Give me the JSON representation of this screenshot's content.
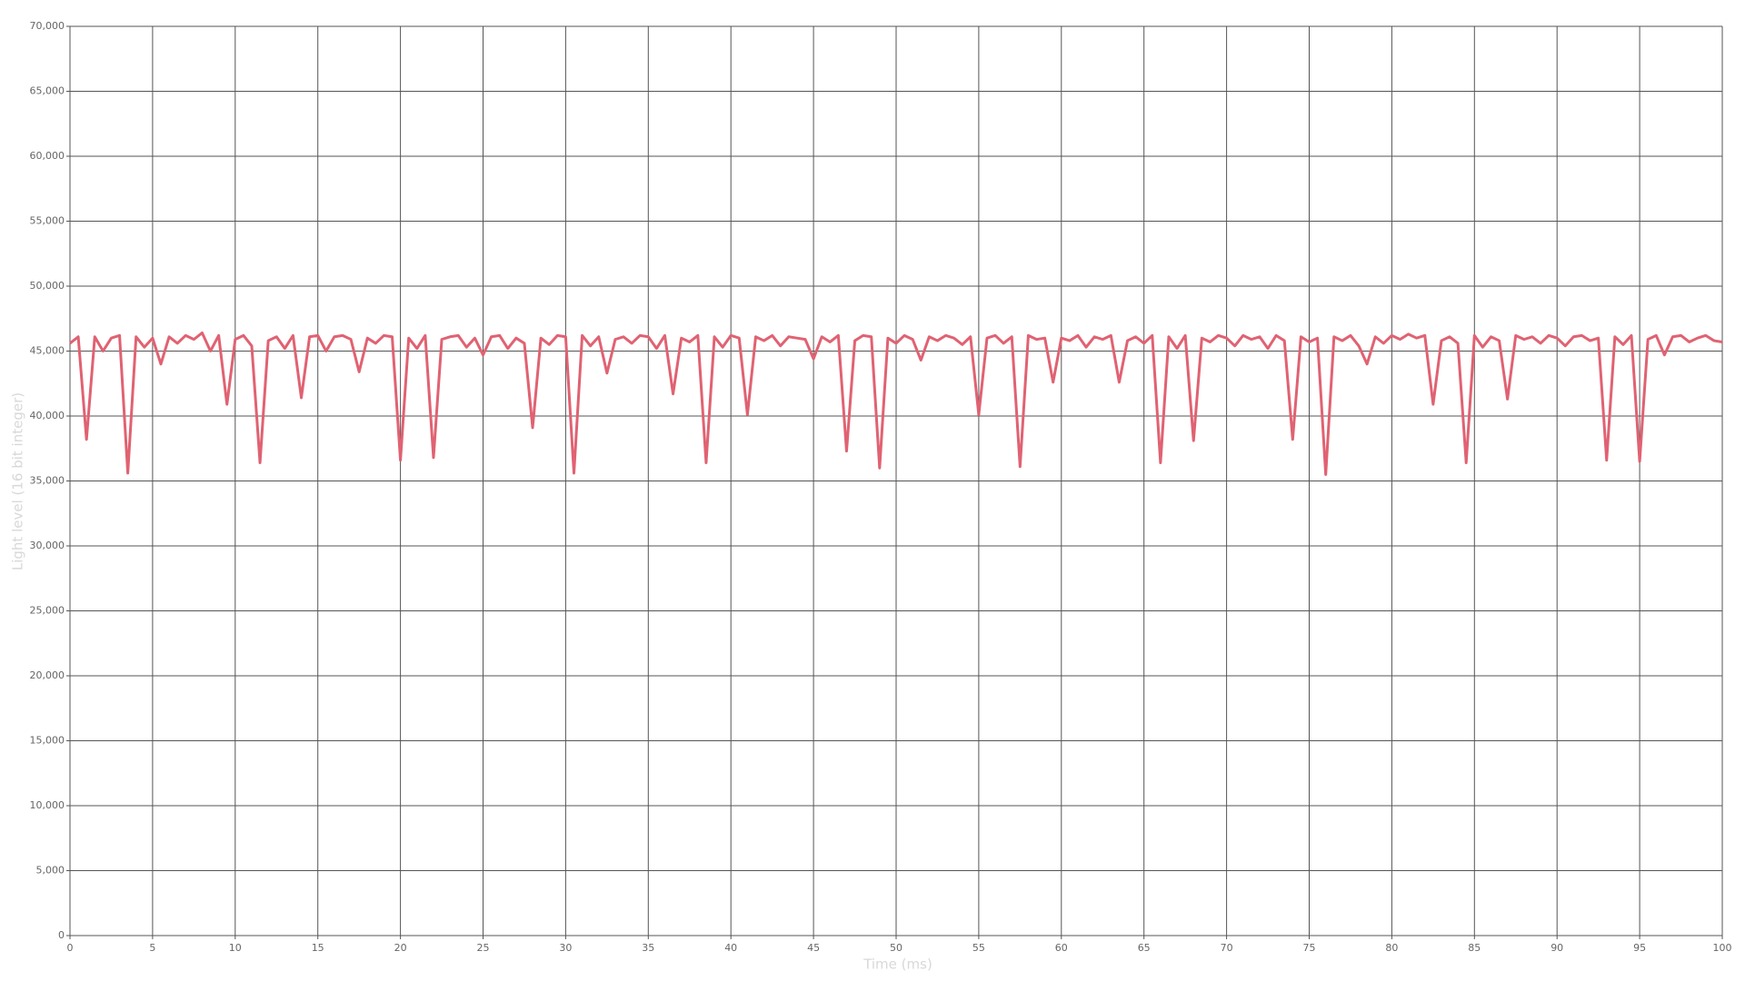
{
  "chart_data": {
    "type": "line",
    "x_label": "Time (ms)",
    "y_label": "Light level (16 bit integer)",
    "color": "#e06272",
    "grid": true,
    "xlim": [
      0,
      100
    ],
    "xticks": [
      0,
      5,
      10,
      15,
      20,
      25,
      30,
      35,
      40,
      45,
      50,
      55,
      60,
      65,
      70,
      75,
      80,
      85,
      90,
      95,
      100
    ],
    "ylim": [
      0,
      70000
    ],
    "yticks": [
      0,
      {
        "value": 5000,
        "label": "5,000"
      },
      {
        "value": 10000,
        "label": "10,000"
      },
      {
        "value": 15000,
        "label": "15,000"
      },
      {
        "value": 20000,
        "label": "20,000"
      },
      {
        "value": 25000,
        "label": "25,000"
      },
      {
        "value": 30000,
        "label": "30,000"
      },
      {
        "value": 35000,
        "label": "35,000"
      },
      {
        "value": 40000,
        "label": "40,000"
      },
      {
        "value": 45000,
        "label": "45,000"
      },
      {
        "value": 50000,
        "label": "50,000"
      },
      {
        "value": 55000,
        "label": "55,000"
      },
      {
        "value": 60000,
        "label": "60,000"
      },
      {
        "value": 65000,
        "label": "65,000"
      },
      {
        "value": 70000,
        "label": "70,000"
      }
    ],
    "x": [
      0,
      0.5,
      1,
      1.5,
      2,
      2.5,
      3,
      3.5,
      4,
      4.5,
      5,
      5.5,
      6,
      6.5,
      7,
      7.5,
      8,
      8.5,
      9,
      9.5,
      10,
      10.5,
      11,
      11.5,
      12,
      12.5,
      13,
      13.5,
      14,
      14.5,
      15,
      15.5,
      16,
      16.5,
      17,
      17.5,
      18,
      18.5,
      19,
      19.5,
      20,
      20.5,
      21,
      21.5,
      22,
      22.5,
      23,
      23.5,
      24,
      24.5,
      25,
      25.5,
      26,
      26.5,
      27,
      27.5,
      28,
      28.5,
      29,
      29.5,
      30,
      30.5,
      31,
      31.5,
      32,
      32.5,
      33,
      33.5,
      34,
      34.5,
      35,
      35.5,
      36,
      36.5,
      37,
      37.5,
      38,
      38.5,
      39,
      39.5,
      40,
      40.5,
      41,
      41.5,
      42,
      42.5,
      43,
      43.5,
      44,
      44.5,
      45,
      45.5,
      46,
      46.5,
      47,
      47.5,
      48,
      48.5,
      49,
      49.5,
      50,
      50.5,
      51,
      51.5,
      52,
      52.5,
      53,
      53.5,
      54,
      54.5,
      55,
      55.5,
      56,
      56.5,
      57,
      57.5,
      58,
      58.5,
      59,
      59.5,
      60,
      60.5,
      61,
      61.5,
      62,
      62.5,
      63,
      63.5,
      64,
      64.5,
      65,
      65.5,
      66,
      66.5,
      67,
      67.5,
      68,
      68.5,
      69,
      69.5,
      70,
      70.5,
      71,
      71.5,
      72,
      72.5,
      73,
      73.5,
      74,
      74.5,
      75,
      75.5,
      76,
      76.5,
      77,
      77.5,
      78,
      78.5,
      79,
      79.5,
      80,
      80.5,
      81,
      81.5,
      82,
      82.5,
      83,
      83.5,
      84,
      84.5,
      85,
      85.5,
      86,
      86.5,
      87,
      87.5,
      88,
      88.5,
      89,
      89.5,
      90,
      90.5,
      91,
      91.5,
      92,
      92.5,
      93,
      93.5,
      94,
      94.5,
      95,
      95.5,
      96,
      96.5,
      97,
      97.5,
      98,
      98.5,
      99,
      99.5,
      100
    ],
    "values": [
      45600,
      46100,
      38200,
      46100,
      45000,
      46000,
      46200,
      35600,
      46100,
      45300,
      46000,
      44000,
      46100,
      45600,
      46200,
      45900,
      46400,
      45000,
      46200,
      40900,
      45900,
      46200,
      45400,
      36400,
      45800,
      46100,
      45200,
      46200,
      41400,
      46100,
      46200,
      45000,
      46100,
      46200,
      45900,
      43400,
      46000,
      45600,
      46200,
      46100,
      36600,
      46000,
      45200,
      46200,
      36800,
      45900,
      46100,
      46200,
      45300,
      46000,
      44700,
      46100,
      46200,
      45200,
      46000,
      45600,
      39100,
      46000,
      45500,
      46200,
      46100,
      35600,
      46200,
      45400,
      46100,
      43300,
      45900,
      46100,
      45600,
      46200,
      46100,
      45200,
      46200,
      41700,
      46000,
      45700,
      46200,
      36400,
      46100,
      45300,
      46200,
      46000,
      40100,
      46100,
      45800,
      46200,
      45400,
      46100,
      46000,
      45900,
      44400,
      46100,
      45700,
      46200,
      37300,
      45800,
      46200,
      46100,
      36000,
      46000,
      45600,
      46200,
      45900,
      44300,
      46100,
      45800,
      46200,
      46000,
      45500,
      46100,
      40100,
      46000,
      46200,
      45600,
      46100,
      36100,
      46200,
      45900,
      46000,
      42600,
      46000,
      45800,
      46200,
      45300,
      46100,
      45900,
      46200,
      42600,
      45800,
      46100,
      45600,
      46200,
      36400,
      46100,
      45200,
      46200,
      38100,
      46000,
      45700,
      46200,
      46000,
      45400,
      46200,
      45900,
      46100,
      45200,
      46200,
      45800,
      38200,
      46100,
      45700,
      46000,
      35500,
      46100,
      45800,
      46200,
      45400,
      44000,
      46100,
      45600,
      46200,
      45900,
      46300,
      46000,
      46200,
      40900,
      45800,
      46100,
      45600,
      36400,
      46200,
      45300,
      46100,
      45800,
      41300,
      46200,
      45900,
      46100,
      45600,
      46200,
      46000,
      45400,
      46100,
      46200,
      45800,
      46000,
      36600,
      46100,
      45500,
      46200,
      36500,
      45900,
      46200,
      44700,
      46100,
      46200,
      45700,
      46000,
      46200,
      45800,
      45700
    ]
  }
}
